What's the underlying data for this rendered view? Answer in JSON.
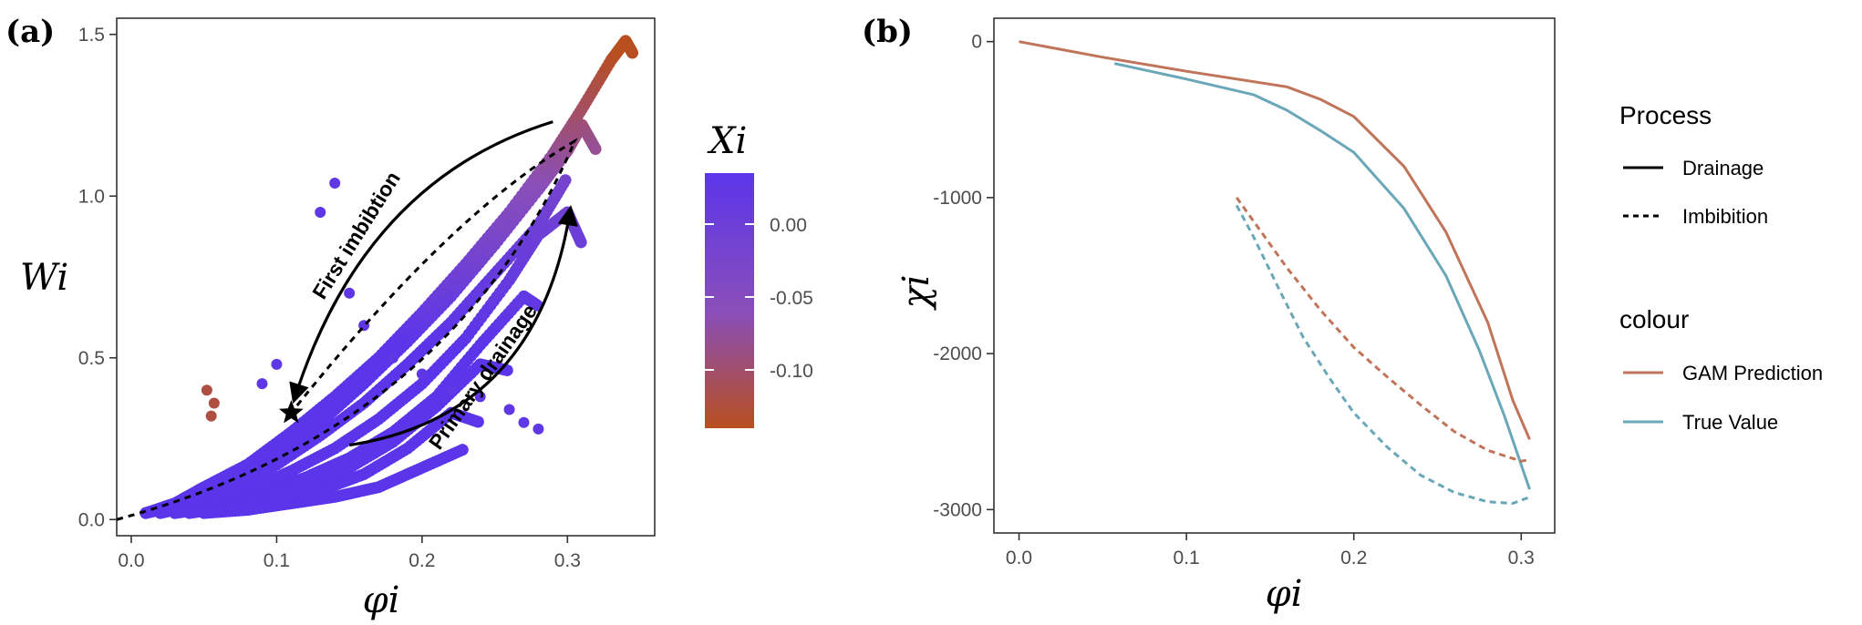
{
  "chart_data": [
    {
      "panel": "(a)",
      "type": "scatter",
      "xlabel": "φi",
      "ylabel": "Wi",
      "xlim": [
        -0.01,
        0.36
      ],
      "ylim": [
        -0.05,
        1.55
      ],
      "x_ticks": [
        "0.0",
        "0.1",
        "0.2",
        "0.3"
      ],
      "y_ticks": [
        "0.0",
        "0.5",
        "1.0",
        "1.5"
      ],
      "grid": false,
      "colorbar": {
        "title": "Xi",
        "ticks": [
          "0.00",
          "-0.05",
          "-0.10"
        ],
        "range": [
          -0.14,
          0.035
        ],
        "colors": [
          "#5b35ea",
          "#8a4fb8",
          "#b84f1f"
        ]
      },
      "series": [
        {
          "x": [
            0.01,
            0.03,
            0.05,
            0.08,
            0.11,
            0.14,
            0.17,
            0.2,
            0.23,
            0.26,
            0.29,
            0.31,
            0.33,
            0.34,
            0.345
          ],
          "y": [
            0.02,
            0.05,
            0.1,
            0.17,
            0.27,
            0.38,
            0.5,
            0.64,
            0.79,
            0.95,
            1.13,
            1.27,
            1.42,
            1.48,
            1.44
          ]
        },
        {
          "x": [
            0.01,
            0.04,
            0.07,
            0.1,
            0.13,
            0.16,
            0.19,
            0.22,
            0.25,
            0.28,
            0.3,
            0.31,
            0.32
          ],
          "y": [
            0.02,
            0.06,
            0.12,
            0.2,
            0.3,
            0.42,
            0.55,
            0.69,
            0.85,
            1.02,
            1.14,
            1.22,
            1.14
          ]
        },
        {
          "x": [
            0.01,
            0.04,
            0.07,
            0.1,
            0.13,
            0.16,
            0.19,
            0.22,
            0.25,
            0.28,
            0.3
          ],
          "y": [
            0.02,
            0.05,
            0.1,
            0.17,
            0.26,
            0.36,
            0.48,
            0.61,
            0.76,
            0.91,
            1.06
          ]
        },
        {
          "x": [
            0.02,
            0.05,
            0.08,
            0.11,
            0.14,
            0.17,
            0.2,
            0.23,
            0.26,
            0.28,
            0.3,
            0.31
          ],
          "y": [
            0.02,
            0.05,
            0.09,
            0.15,
            0.22,
            0.31,
            0.42,
            0.56,
            0.74,
            0.88,
            0.95,
            0.85
          ]
        },
        {
          "x": [
            0.03,
            0.06,
            0.09,
            0.12,
            0.15,
            0.18,
            0.21,
            0.24,
            0.27,
            0.28
          ],
          "y": [
            0.02,
            0.04,
            0.08,
            0.13,
            0.19,
            0.27,
            0.38,
            0.54,
            0.69,
            0.66
          ]
        },
        {
          "x": [
            0.03,
            0.06,
            0.09,
            0.12,
            0.15,
            0.18,
            0.21,
            0.24,
            0.26
          ],
          "y": [
            0.02,
            0.04,
            0.07,
            0.11,
            0.16,
            0.24,
            0.35,
            0.48,
            0.46
          ]
        },
        {
          "x": [
            0.04,
            0.07,
            0.1,
            0.13,
            0.16,
            0.19,
            0.22,
            0.24
          ],
          "y": [
            0.02,
            0.04,
            0.06,
            0.09,
            0.14,
            0.22,
            0.33,
            0.3
          ]
        },
        {
          "x": [
            0.05,
            0.08,
            0.11,
            0.14,
            0.17,
            0.2,
            0.23
          ],
          "y": [
            0.02,
            0.03,
            0.05,
            0.07,
            0.1,
            0.16,
            0.22
          ]
        },
        {
          "x": [
            0.057,
            0.055,
            0.052,
            0.09,
            0.1,
            0.13,
            0.14,
            0.15,
            0.16,
            0.18,
            0.2,
            0.22,
            0.24,
            0.26,
            0.27,
            0.28
          ],
          "y": [
            0.36,
            0.32,
            0.4,
            0.42,
            0.48,
            0.95,
            1.04,
            0.7,
            0.6,
            0.5,
            0.45,
            0.4,
            0.38,
            0.34,
            0.3,
            0.28
          ]
        }
      ],
      "annotations": [
        "First imbibtion",
        "Primary drainage"
      ],
      "marker": {
        "x": 0.11,
        "y": 0.33
      }
    },
    {
      "panel": "(b)",
      "type": "line",
      "xlabel": "φi",
      "ylabel": "χi",
      "xlim": [
        -0.015,
        0.32
      ],
      "ylim": [
        -3150,
        150
      ],
      "x_ticks": [
        "0.0",
        "0.1",
        "0.2",
        "0.3"
      ],
      "y_ticks": [
        "0",
        "-1000",
        "-2000",
        "-3000"
      ],
      "grid": false,
      "series": [
        {
          "process": "Drainage",
          "colour": "GAM Prediction",
          "x": [
            0.0,
            0.05,
            0.1,
            0.16,
            0.18,
            0.2,
            0.23,
            0.255,
            0.28,
            0.295,
            0.305
          ],
          "y": [
            0,
            -100,
            -190,
            -290,
            -370,
            -480,
            -800,
            -1220,
            -1800,
            -2300,
            -2550
          ]
        },
        {
          "process": "Drainage",
          "colour": "True Value",
          "x": [
            0.057,
            0.1,
            0.14,
            0.16,
            0.18,
            0.2,
            0.23,
            0.255,
            0.275,
            0.29,
            0.305
          ],
          "y": [
            -140,
            -240,
            -340,
            -440,
            -570,
            -710,
            -1070,
            -1500,
            -1980,
            -2400,
            -2870
          ]
        },
        {
          "process": "Imbibition",
          "colour": "GAM Prediction",
          "x": [
            0.13,
            0.14,
            0.16,
            0.18,
            0.2,
            0.22,
            0.24,
            0.26,
            0.28,
            0.3,
            0.305
          ],
          "y": [
            -1000,
            -1150,
            -1450,
            -1720,
            -1960,
            -2150,
            -2330,
            -2500,
            -2620,
            -2690,
            -2680
          ]
        },
        {
          "process": "Imbibition",
          "colour": "True Value",
          "x": [
            0.13,
            0.14,
            0.155,
            0.17,
            0.185,
            0.2,
            0.22,
            0.24,
            0.26,
            0.28,
            0.295,
            0.305
          ],
          "y": [
            -1050,
            -1250,
            -1580,
            -1900,
            -2150,
            -2380,
            -2600,
            -2780,
            -2890,
            -2950,
            -2960,
            -2920
          ]
        }
      ],
      "legend": {
        "placement": "right",
        "process_title": "Process",
        "process_items": [
          "Drainage",
          "Imbibition"
        ],
        "colour_title": "colour",
        "colour_items": [
          {
            "label": "GAM Prediction",
            "color": "#c0745a"
          },
          {
            "label": "True Value",
            "color": "#6aa7b8"
          }
        ]
      }
    }
  ]
}
